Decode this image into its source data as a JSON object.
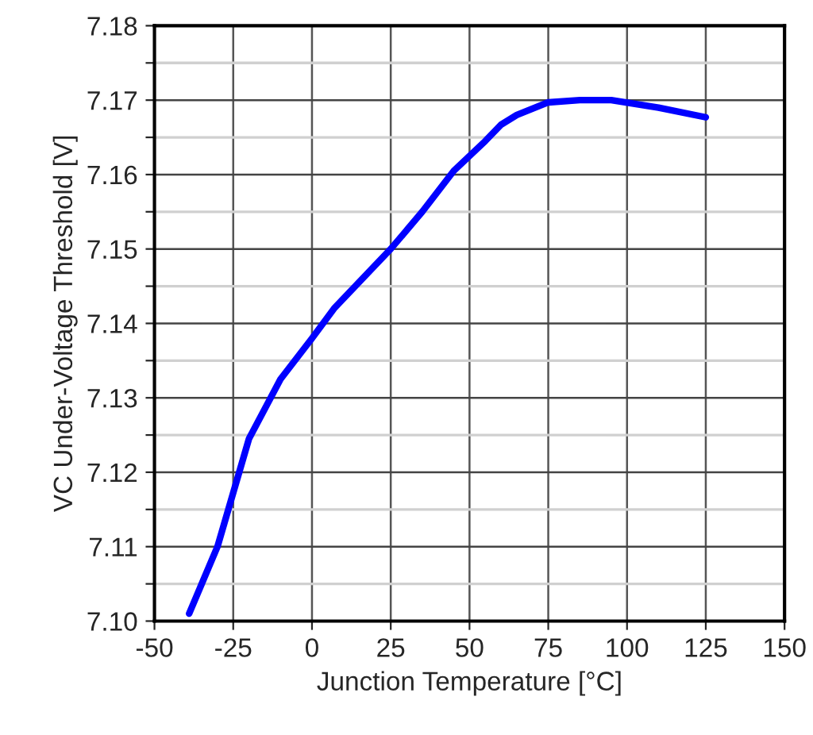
{
  "chart_data": {
    "type": "line",
    "xlabel": "Junction Temperature [°C]",
    "ylabel": "VC Under-Voltage Threshold [V]",
    "xlim": [
      -50,
      150
    ],
    "xticks": [
      -50,
      -25,
      0,
      25,
      50,
      75,
      100,
      125,
      150
    ],
    "ylim": [
      7.1,
      7.18
    ],
    "yticks": [
      {
        "value": 7.1,
        "label": "7.10"
      },
      {
        "value": 7.105,
        "label": null
      },
      {
        "value": 7.11,
        "label": "7.11"
      },
      {
        "value": 7.115,
        "label": null
      },
      {
        "value": 7.12,
        "label": "7.12"
      },
      {
        "value": 7.125,
        "label": null
      },
      {
        "value": 7.13,
        "label": "7.13"
      },
      {
        "value": 7.135,
        "label": null
      },
      {
        "value": 7.14,
        "label": "7.14"
      },
      {
        "value": 7.145,
        "label": null
      },
      {
        "value": 7.15,
        "label": "7.15"
      },
      {
        "value": 7.155,
        "label": null
      },
      {
        "value": 7.16,
        "label": "7.16"
      },
      {
        "value": 7.165,
        "label": null
      },
      {
        "value": 7.17,
        "label": "7.17"
      },
      {
        "value": 7.175,
        "label": null
      },
      {
        "value": 7.18,
        "label": "7.18"
      }
    ],
    "grid": true,
    "series": [
      {
        "color": "#0000ff",
        "x": [
          -39,
          -30,
          -20,
          -10,
          0,
          7,
          25,
          35,
          45,
          55,
          60,
          65,
          75,
          85,
          95,
          110,
          125
        ],
        "values": [
          7.101,
          7.11,
          7.1245,
          7.1325,
          7.138,
          7.142,
          7.15,
          7.155,
          7.1605,
          7.1645,
          7.1667,
          7.168,
          7.1697,
          7.17,
          7.17,
          7.169,
          7.1677
        ]
      }
    ]
  }
}
